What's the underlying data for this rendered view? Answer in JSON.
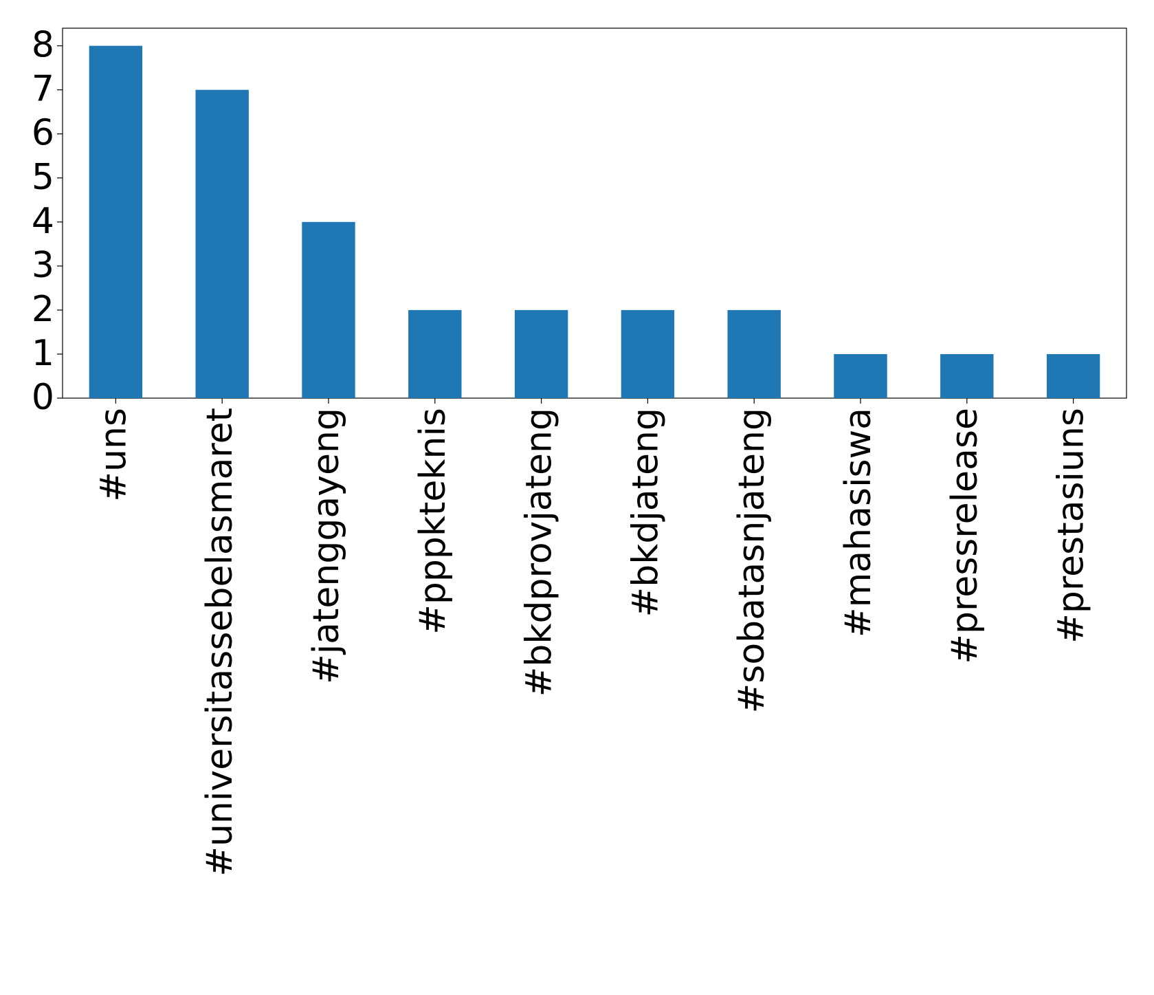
{
  "chart_data": {
    "type": "bar",
    "categories": [
      "#uns",
      "#universitassebelasmaret",
      "#jatenggayeng",
      "#pppkteknis",
      "#bkdprovjateng",
      "#bkdjateng",
      "#sobatasnjateng",
      "#mahasiswa",
      "#pressrelease",
      "#prestasiuns"
    ],
    "values": [
      8,
      7,
      4,
      2,
      2,
      2,
      2,
      1,
      1,
      1
    ],
    "color": "#1f77b4",
    "ylim": [
      0,
      8.4
    ],
    "yticks": [
      0,
      1,
      2,
      3,
      4,
      5,
      6,
      7,
      8
    ],
    "grid": false
  }
}
